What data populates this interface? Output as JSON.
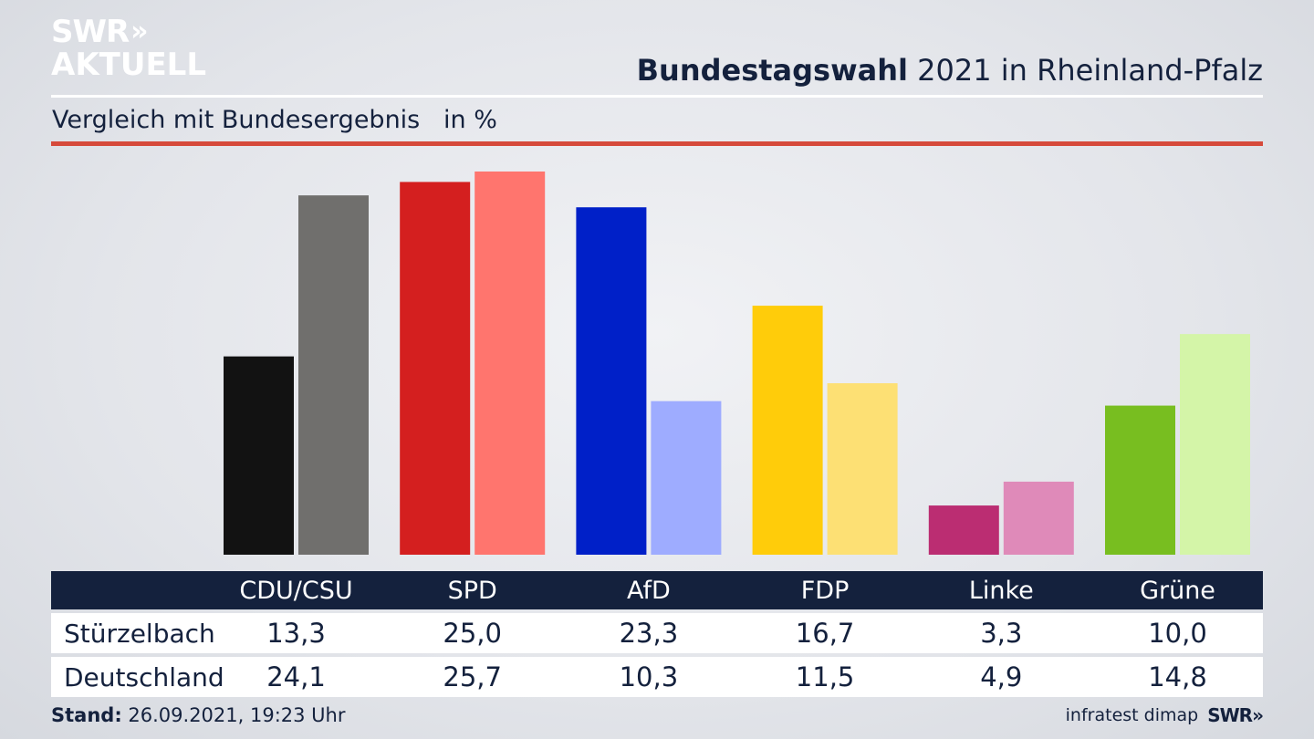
{
  "brand": {
    "line1": "SWR",
    "chevrons": "»",
    "line2": "AKTUELL"
  },
  "header": {
    "title_bold": "Bundestagswahl",
    "title_rest": " 2021 in Rheinland-Pfalz"
  },
  "subtitle": "Vergleich mit Bundesergebnis   in %",
  "footer": {
    "stand_label": "Stand:",
    "stand_value": " 26.09.2021, 19:23 Uhr",
    "source": "infratest dimap",
    "logo": "SWR»"
  },
  "colors": {
    "accent_red": "#d64a3b",
    "navy": "#14213d"
  },
  "chart_data": {
    "type": "bar",
    "categories": [
      "CDU/CSU",
      "SPD",
      "AfD",
      "FDP",
      "Linke",
      "Grüne"
    ],
    "series": [
      {
        "name": "Stürzelbach",
        "values": [
          "13,3",
          "25,0",
          "23,3",
          "16,7",
          "3,3",
          "10,0"
        ],
        "colors": [
          "#121212",
          "#d41f1f",
          "#0020c8",
          "#ffcc0a",
          "#bb2d72",
          "#78be20"
        ]
      },
      {
        "name": "Deutschland",
        "values": [
          "24,1",
          "25,7",
          "10,3",
          "11,5",
          "4,9",
          "14,8"
        ],
        "colors": [
          "#706f6d",
          "#ff756e",
          "#9eacff",
          "#fde074",
          "#df8ab9",
          "#d4f5a8"
        ]
      }
    ],
    "ylim": [
      0,
      25.7
    ],
    "grid": false
  }
}
